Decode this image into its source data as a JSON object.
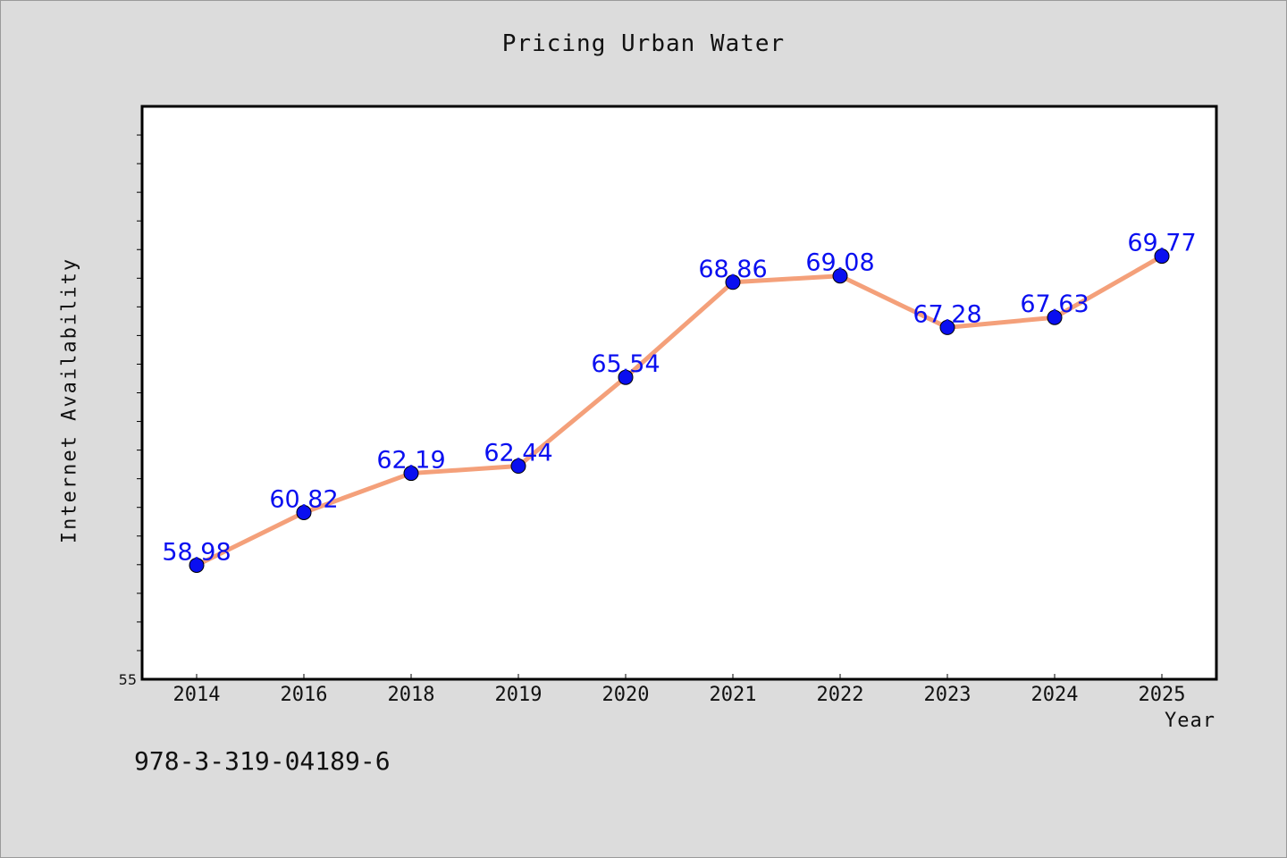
{
  "chart_data": {
    "type": "line",
    "title": "Pricing Urban Water",
    "xlabel": "Year",
    "ylabel": "Internet Availability",
    "categories": [
      "2014",
      "2016",
      "2018",
      "2019",
      "2020",
      "2021",
      "2022",
      "2023",
      "2024",
      "2025"
    ],
    "series": [
      {
        "values": [
          58.98,
          60.82,
          62.19,
          62.44,
          65.54,
          68.86,
          69.08,
          67.28,
          67.63,
          69.77
        ],
        "data_labels": [
          "58.98",
          "60.82",
          "62.19",
          "62.44",
          "65.54",
          "68.86",
          "69.08",
          "67.28",
          "67.63",
          "69.77"
        ],
        "line_color": "#f4a07a",
        "marker_color": "#0a0ff0"
      }
    ],
    "ylim": [
      55,
      75
    ],
    "y_tick_labels": [
      "55"
    ],
    "grid": false,
    "label_color": "#0a0ff0"
  },
  "annotation": "978-3-319-04189-6"
}
